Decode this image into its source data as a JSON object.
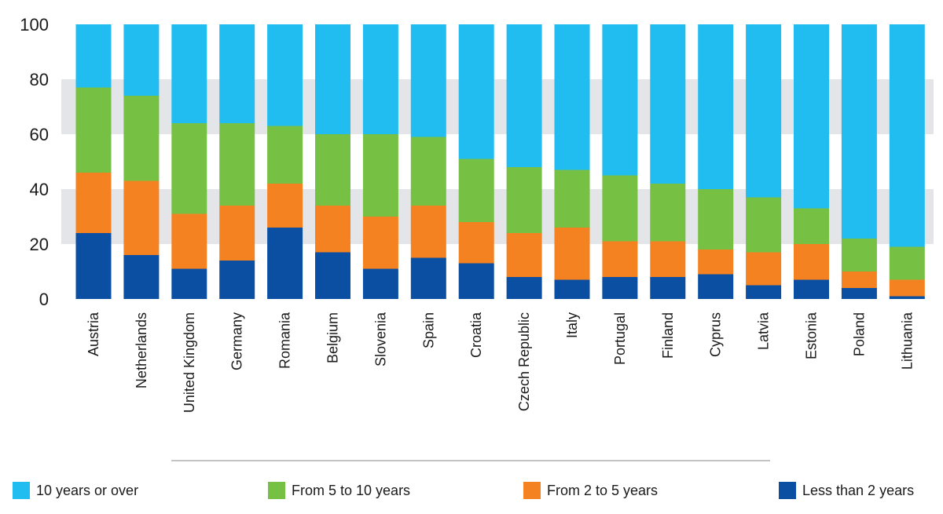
{
  "chart_data": {
    "type": "bar",
    "stacked": true,
    "categories": [
      "Austria",
      "Netherlands",
      "United Kingdom",
      "Germany",
      "Romania",
      "Belgium",
      "Slovenia",
      "Spain",
      "Croatia",
      "Czech Republic",
      "Italy",
      "Portugal",
      "Finland",
      "Cyprus",
      "Latvia",
      "Estonia",
      "Poland",
      "Lithuania"
    ],
    "series": [
      {
        "name": "Less than 2 years",
        "color": "#0b4fa3",
        "values": [
          24,
          16,
          11,
          14,
          26,
          17,
          11,
          15,
          13,
          8,
          7,
          8,
          8,
          9,
          5,
          7,
          4,
          1
        ]
      },
      {
        "name": "From 2 to 5 years",
        "color": "#f58220",
        "values": [
          22,
          27,
          20,
          20,
          16,
          17,
          19,
          19,
          15,
          16,
          19,
          13,
          13,
          9,
          12,
          13,
          6,
          6
        ]
      },
      {
        "name": "From 5 to 10 years",
        "color": "#76c043",
        "values": [
          31,
          31,
          33,
          30,
          21,
          26,
          30,
          25,
          23,
          24,
          21,
          24,
          21,
          22,
          20,
          13,
          12,
          12
        ]
      },
      {
        "name": "10 years or over",
        "color": "#22bdf0",
        "values": [
          23,
          26,
          36,
          36,
          37,
          40,
          40,
          41,
          49,
          52,
          53,
          55,
          58,
          60,
          63,
          67,
          78,
          81
        ]
      }
    ],
    "title": "",
    "xlabel": "",
    "ylabel": "",
    "ylim": [
      0,
      100
    ],
    "yticks": [
      0,
      20,
      40,
      60,
      80,
      100
    ],
    "grid": "alternating horizontal bands",
    "legend_position": "bottom"
  },
  "legend": {
    "items": [
      {
        "label": "10 years or over",
        "color": "#22bdf0"
      },
      {
        "label": "From 5 to 10 years",
        "color": "#76c043"
      },
      {
        "label": "From 2 to 5 years",
        "color": "#f58220"
      },
      {
        "label": "Less than 2 years",
        "color": "#0b4fa3"
      }
    ]
  }
}
